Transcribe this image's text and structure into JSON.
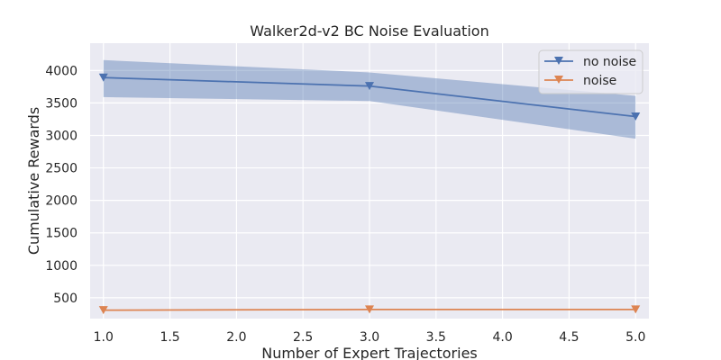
{
  "chart_data": {
    "type": "line",
    "title": "Walker2d-v2 BC Noise Evaluation",
    "xlabel": "Number of Expert Trajectories",
    "ylabel": "Cumulative Rewards",
    "xlim": [
      0.9,
      5.1
    ],
    "ylim": [
      180,
      4420
    ],
    "xticks": [
      1.0,
      1.5,
      2.0,
      2.5,
      3.0,
      3.5,
      4.0,
      4.5,
      5.0
    ],
    "xtick_labels": [
      "1.0",
      "1.5",
      "2.0",
      "2.5",
      "3.0",
      "3.5",
      "4.0",
      "4.5",
      "5.0"
    ],
    "yticks": [
      500,
      1000,
      1500,
      2000,
      2500,
      3000,
      3500,
      4000
    ],
    "ytick_labels": [
      "500",
      "1000",
      "1500",
      "2000",
      "2500",
      "3000",
      "3500",
      "4000"
    ],
    "grid": true,
    "legend_position": "top-right",
    "x": [
      1.0,
      3.0,
      5.0
    ],
    "series": [
      {
        "name": "no noise",
        "color": "#4c72b0",
        "marker": "triangle-down",
        "values": [
          3890,
          3760,
          3290
        ],
        "band_upper": [
          4160,
          3970,
          3610
        ],
        "band_lower": [
          3590,
          3530,
          2950
        ]
      },
      {
        "name": "noise",
        "color": "#dd8452",
        "marker": "triangle-down",
        "values": [
          310,
          320,
          320
        ],
        "band_upper": [
          315,
          325,
          325
        ],
        "band_lower": [
          305,
          315,
          315
        ]
      }
    ]
  }
}
